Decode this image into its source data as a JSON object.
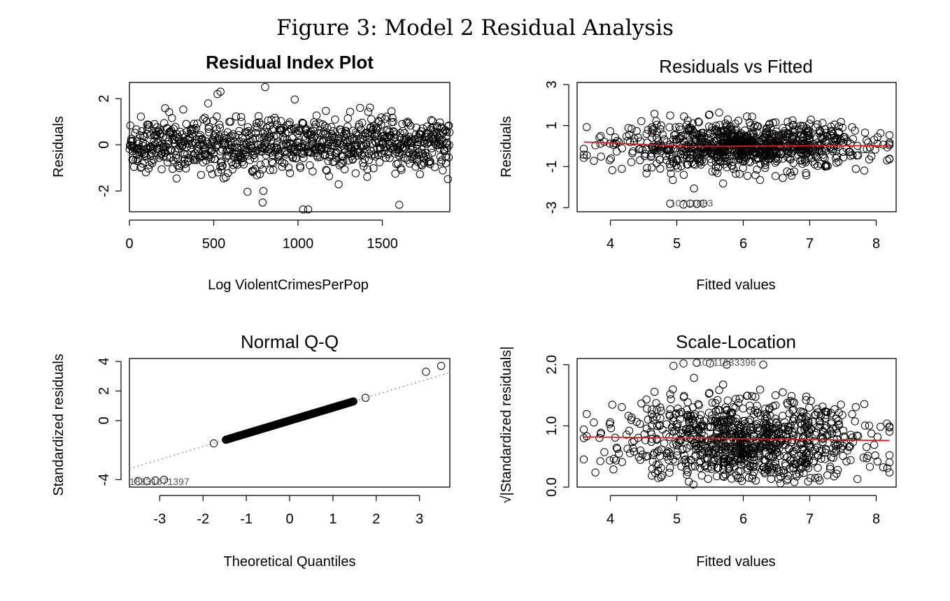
{
  "figure_title": "Figure 3: Model 2 Residual Analysis",
  "chart_data": [
    {
      "type": "scatter",
      "title": "Residual Index Plot",
      "xlabel": "Log ViolentCrimesPerPop",
      "ylabel": "Residuals",
      "xlim": [
        0,
        1900
      ],
      "ylim": [
        -2.9,
        2.7
      ],
      "xticks": [
        0,
        500,
        1000,
        1500
      ],
      "yticks": [
        -2,
        0,
        2
      ],
      "n_points": 1900,
      "residual_spread": "approximately normal, centered at 0, sd about 0.6",
      "outliers": [
        {
          "x": 805,
          "y": 2.5
        },
        {
          "x": 540,
          "y": 2.3
        },
        {
          "x": 1030,
          "y": -2.8
        },
        {
          "x": 1060,
          "y": -2.8
        },
        {
          "x": 1600,
          "y": -2.6
        },
        {
          "x": 790,
          "y": -2.5
        }
      ]
    },
    {
      "type": "scatter",
      "title": "Residuals vs Fitted",
      "xlabel": "Fitted values",
      "ylabel": "Residuals",
      "xlim": [
        3.5,
        8.3
      ],
      "ylim": [
        -3.2,
        3.1
      ],
      "xticks": [
        4,
        5,
        6,
        7,
        8
      ],
      "yticks": [
        -3,
        -1,
        1,
        3
      ],
      "fitted_range": [
        3.6,
        8.2
      ],
      "smoother": "red loess line near 0",
      "point_labels": [
        "1071",
        "1883"
      ]
    },
    {
      "type": "scatter",
      "title": "Normal Q-Q",
      "xlabel": "Theoretical Quantiles",
      "ylabel": "Standardized residuals",
      "xlim": [
        -3.7,
        3.7
      ],
      "ylim": [
        -4.5,
        4.2
      ],
      "xticks": [
        -3,
        -2,
        -1,
        0,
        1,
        2,
        3
      ],
      "yticks": [
        -4,
        0,
        2,
        4
      ],
      "reference_line": "dotted line through quartiles, slope about 1",
      "lower_tail": "heavy, points fall below line from about -2.5 down to -4",
      "point_labels": [
        "1883",
        "1071",
        "397"
      ]
    },
    {
      "type": "scatter",
      "title": "Scale-Location",
      "xlabel": "Fitted values",
      "ylabel": "√|Standardized residuals|",
      "xlim": [
        3.5,
        8.3
      ],
      "ylim": [
        0,
        2.1
      ],
      "xticks": [
        4,
        5,
        6,
        7,
        8
      ],
      "yticks": [
        0.0,
        1.0,
        2.0
      ],
      "yticklabels": [
        "0.0",
        "1.0",
        "2.0"
      ],
      "smoother": "red line near 0.8, slightly decreasing",
      "point_labels": [
        "1071",
        "1883",
        "396"
      ]
    }
  ],
  "colors": {
    "points": "#000000",
    "smoother": "#e41a1c",
    "refline": "#999999"
  }
}
